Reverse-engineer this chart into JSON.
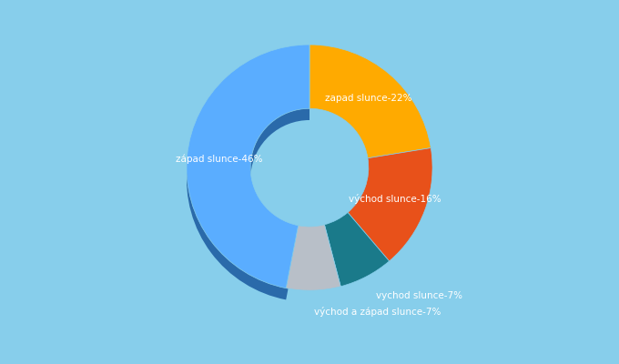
{
  "labels": [
    "zapad slunce",
    "východ slunce",
    "vychod slunce",
    "východ a západ slunce",
    "západ slunce"
  ],
  "values": [
    22,
    16,
    7,
    7,
    46
  ],
  "colors": [
    "#ffaa00",
    "#e8511a",
    "#1a7a8a",
    "#b8bfc8",
    "#5aadff"
  ],
  "shadow_color": "#3a7abd",
  "background_color": "#87ceeb",
  "text_color": "#ffffff",
  "label_texts": [
    "zapad slunce-22%",
    "východ slunce-16%",
    "vychod slunce-7%",
    "východ a západ slunce-7%",
    "západ slunce-46%"
  ],
  "startangle": 90,
  "donut_width": 0.52
}
